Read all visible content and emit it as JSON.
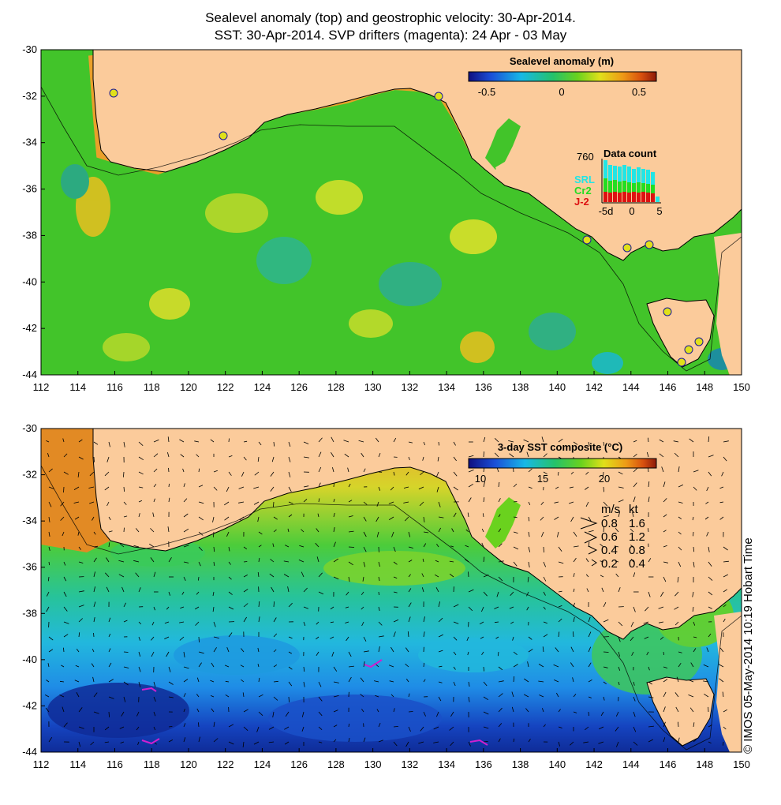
{
  "title": {
    "line1": "Sealevel anomaly (top) and geostrophic velocity: 30-Apr-2014.",
    "line2": "SST: 30-Apr-2014. SVP drifters (magenta): 24 Apr - 03 May"
  },
  "axes": {
    "lon_ticks": [
      "112",
      "114",
      "116",
      "118",
      "120",
      "122",
      "124",
      "126",
      "128",
      "130",
      "132",
      "134",
      "136",
      "138",
      "140",
      "142",
      "144",
      "146",
      "148",
      "150"
    ],
    "lat_ticks": [
      "-30",
      "-32",
      "-34",
      "-36",
      "-38",
      "-40",
      "-42",
      "-44"
    ],
    "lon_range": [
      112,
      150
    ],
    "lat_range": [
      -30,
      -44
    ]
  },
  "top_panel": {
    "colorbar_title": "Sealevel anomaly (m)",
    "colorbar_ticks": [
      "-0.5",
      "0",
      "0.5"
    ],
    "data_count": {
      "title": "Data count",
      "max_label": "760",
      "satellites": [
        "SRL",
        "Cr2",
        "J-2"
      ],
      "satellite_colors": [
        "#22e5e5",
        "#22dd22",
        "#dd1111"
      ],
      "day_ticks": [
        "-5d",
        "0",
        "5"
      ]
    }
  },
  "bottom_panel": {
    "colorbar_title": "3-day SST composite (°C)",
    "colorbar_ticks": [
      "10",
      "15",
      "20"
    ],
    "speed_legend": {
      "header_ms": "m/s",
      "header_kt": "kt",
      "rows": [
        {
          "ms": "0.8",
          "kt": "1.6"
        },
        {
          "ms": "0.6",
          "kt": "1.2"
        },
        {
          "ms": "0.4",
          "kt": "0.8"
        },
        {
          "ms": "0.2",
          "kt": "0.4"
        }
      ]
    }
  },
  "colors": {
    "land": "#fbcb9b",
    "ssh_ocean": "#42c42a",
    "coast": "#000000"
  },
  "credit": "© IMOS 05-May-2014 10:19 Hobart Time"
}
